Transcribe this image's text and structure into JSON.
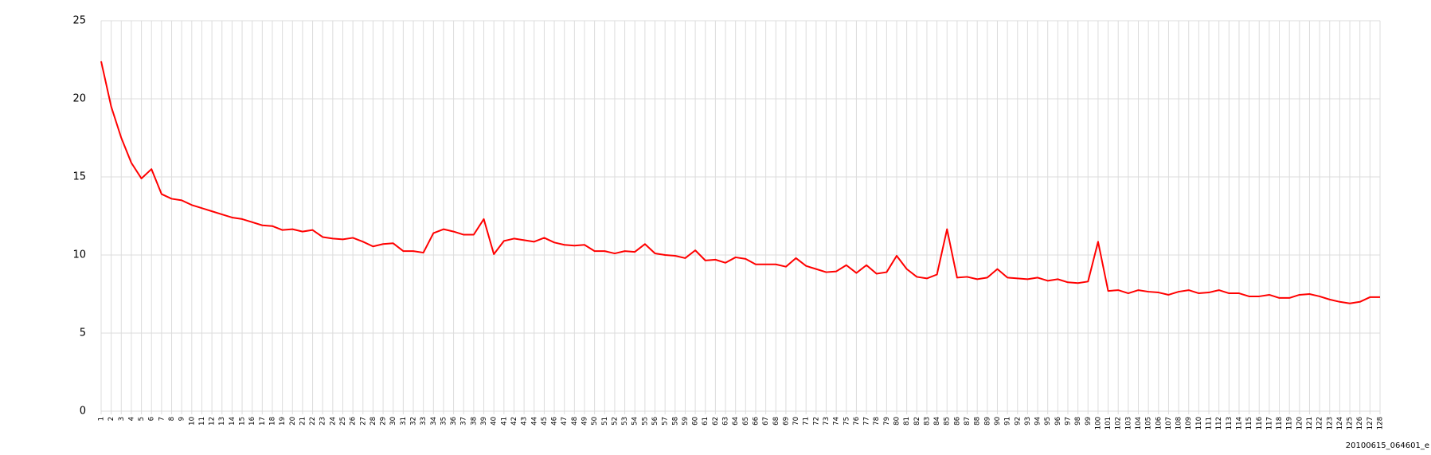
{
  "chart_data": {
    "type": "line",
    "categories": [
      "1",
      "2",
      "3",
      "4",
      "5",
      "6",
      "7",
      "8",
      "9",
      "10",
      "11",
      "12",
      "13",
      "14",
      "15",
      "16",
      "17",
      "18",
      "19",
      "20",
      "21",
      "22",
      "23",
      "24",
      "25",
      "26",
      "27",
      "28",
      "29",
      "30",
      "31",
      "32",
      "33",
      "34",
      "35",
      "36",
      "37",
      "38",
      "39",
      "40",
      "41",
      "42",
      "43",
      "44",
      "45",
      "46",
      "47",
      "48",
      "49",
      "50",
      "51",
      "52",
      "53",
      "54",
      "55",
      "56",
      "57",
      "58",
      "59",
      "60",
      "61",
      "62",
      "63",
      "64",
      "65",
      "66",
      "67",
      "68",
      "69",
      "70",
      "71",
      "72",
      "73",
      "74",
      "75",
      "76",
      "77",
      "78",
      "79",
      "80",
      "81",
      "82",
      "83",
      "84",
      "85",
      "86",
      "87",
      "88",
      "89",
      "90",
      "91",
      "92",
      "93",
      "94",
      "95",
      "96",
      "97",
      "98",
      "99",
      "100",
      "101",
      "102",
      "103",
      "104",
      "105",
      "106",
      "107",
      "108",
      "109",
      "110",
      "111",
      "112",
      "113",
      "114",
      "115",
      "116",
      "117",
      "118",
      "119",
      "120",
      "121",
      "122",
      "123",
      "124",
      "125",
      "126",
      "127",
      "128"
    ],
    "series": [
      {
        "color": "#ff0000",
        "values": [
          22.4,
          19.5,
          17.5,
          15.9,
          14.9,
          15.5,
          13.9,
          13.6,
          13.5,
          13.2,
          13.0,
          12.8,
          12.6,
          12.4,
          12.3,
          12.1,
          11.9,
          11.85,
          11.6,
          11.65,
          11.5,
          11.6,
          11.15,
          11.05,
          11.0,
          11.1,
          10.85,
          10.55,
          10.7,
          10.75,
          10.25,
          10.25,
          10.15,
          11.4,
          11.65,
          11.5,
          11.3,
          11.3,
          12.3,
          10.05,
          10.9,
          11.05,
          10.95,
          10.85,
          11.1,
          10.8,
          10.65,
          10.6,
          10.65,
          10.25,
          10.25,
          10.1,
          10.25,
          10.2,
          10.7,
          10.1,
          10.0,
          9.95,
          9.8,
          10.3,
          9.65,
          9.7,
          9.5,
          9.85,
          9.75,
          9.4,
          9.4,
          9.4,
          9.25,
          9.8,
          9.3,
          9.1,
          8.9,
          8.95,
          9.35,
          8.85,
          9.35,
          8.8,
          8.9,
          9.95,
          9.1,
          8.6,
          8.5,
          8.75,
          11.65,
          8.55,
          8.6,
          8.45,
          8.55,
          9.1,
          8.55,
          8.5,
          8.45,
          8.55,
          8.35,
          8.45,
          8.25,
          8.2,
          8.3,
          10.85,
          7.7,
          7.75,
          7.55,
          7.75,
          7.65,
          7.6,
          7.45,
          7.65,
          7.75,
          7.55,
          7.6,
          7.75,
          7.55,
          7.55,
          7.35,
          7.35,
          7.45,
          7.25,
          7.25,
          7.45,
          7.5,
          7.35,
          7.15,
          7.0,
          6.9,
          7.0,
          7.3,
          7.3
        ]
      }
    ],
    "ylim": [
      0,
      25
    ],
    "yticks": [
      0,
      5,
      10,
      15,
      20,
      25
    ],
    "grid": true,
    "caption": "20100615_064601_e"
  }
}
